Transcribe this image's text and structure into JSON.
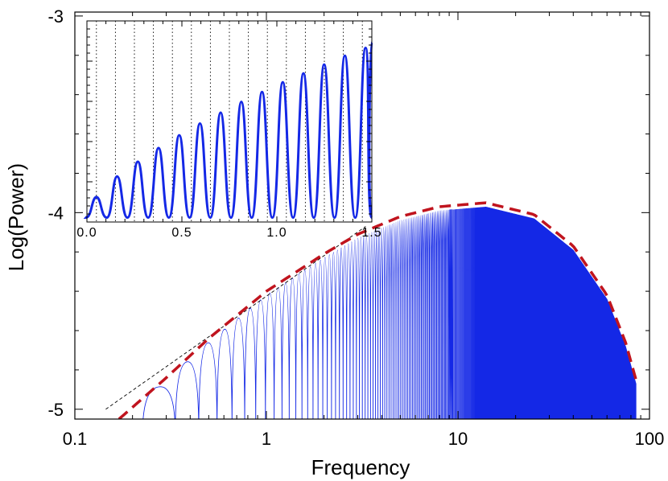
{
  "chart_data": {
    "type": "line",
    "xlabel": "Frequency",
    "ylabel": "Log(Power)",
    "x_scale": "log",
    "xlim": [
      0.1,
      100
    ],
    "ylim": [
      -5.05,
      -2.98
    ],
    "x_ticks": [
      {
        "value": 0.1,
        "label": "0.1"
      },
      {
        "value": 1,
        "label": "1"
      },
      {
        "value": 10,
        "label": "10"
      },
      {
        "value": 100,
        "label": "100"
      }
    ],
    "y_ticks": [
      {
        "value": -3,
        "label": "-3"
      },
      {
        "value": -4,
        "label": "-4"
      },
      {
        "value": -5,
        "label": "-5"
      }
    ],
    "grid": false,
    "series_colors": {
      "spectrum": "#1428e6",
      "envelope": "#c0141e",
      "reference": "#000000"
    },
    "main_spectrum": {
      "description_peaks": "oscillating spectrum with peaks every ~0.109 in frequency",
      "peak_spacing": 0.109,
      "first_peak_x": 0.28,
      "envelope_max_x": 14.0,
      "envelope_max_y": -3.95,
      "end_x": 85,
      "end_y": -4.95
    },
    "envelope_line": {
      "style": "dashed",
      "points": [
        [
          0.17,
          -5.05
        ],
        [
          0.3,
          -4.84
        ],
        [
          0.5,
          -4.64
        ],
        [
          1.0,
          -4.4
        ],
        [
          2.0,
          -4.21
        ],
        [
          3.0,
          -4.11
        ],
        [
          5.0,
          -4.02
        ],
        [
          8.0,
          -3.97
        ],
        [
          14.0,
          -3.95
        ],
        [
          25.0,
          -4.01
        ],
        [
          40.0,
          -4.17
        ],
        [
          60.0,
          -4.42
        ],
        [
          75.0,
          -4.66
        ],
        [
          85.0,
          -4.85
        ]
      ]
    },
    "reference_line": {
      "style": "dotted",
      "points": [
        [
          0.145,
          -5.0
        ],
        [
          3.3,
          -4.07
        ]
      ]
    },
    "inset": {
      "xlim": [
        0.0,
        1.5
      ],
      "x_ticks": [
        {
          "value": 0.0,
          "label": "0.0"
        },
        {
          "value": 0.5,
          "label": "0.5"
        },
        {
          "value": 1.0,
          "label": "1.0"
        },
        {
          "value": 1.5,
          "label": "1.5"
        }
      ],
      "vlines_x": [
        0.05,
        0.15,
        0.25,
        0.35,
        0.45,
        0.55,
        0.65,
        0.75,
        0.85,
        0.95,
        1.05,
        1.15,
        1.25,
        1.35,
        1.45
      ],
      "peaks": [
        [
          0.05,
          0.115
        ],
        [
          0.159,
          0.22
        ],
        [
          0.268,
          0.295
        ],
        [
          0.377,
          0.365
        ],
        [
          0.486,
          0.43
        ],
        [
          0.595,
          0.49
        ],
        [
          0.704,
          0.545
        ],
        [
          0.813,
          0.6
        ],
        [
          0.922,
          0.65
        ],
        [
          1.031,
          0.7
        ],
        [
          1.14,
          0.745
        ],
        [
          1.249,
          0.79
        ],
        [
          1.358,
          0.835
        ],
        [
          1.467,
          0.875
        ],
        [
          1.5,
          0.905
        ]
      ]
    }
  }
}
